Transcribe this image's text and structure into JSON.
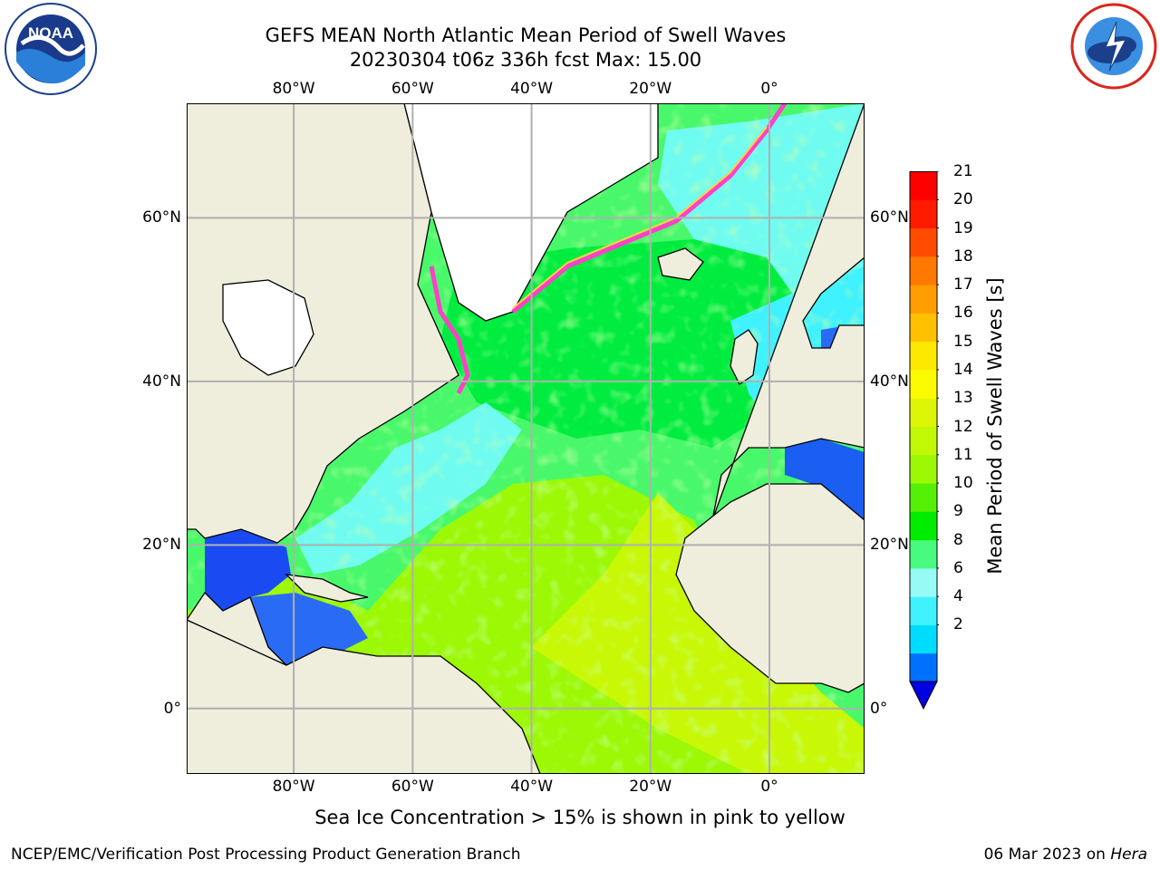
{
  "header": {
    "title_line1": "GEFS MEAN North Atlantic Mean Period of Swell Waves",
    "title_line2": "20230304 t06z 336h fcst   Max: 15.00"
  },
  "logos": {
    "noaa": {
      "text": "NOAA",
      "ring_text": "NATIONAL OCEANIC AND ATMOSPHERIC ADMINISTRATION · U.S. DEPARTMENT OF COMMERCE"
    },
    "nws": {
      "ring_text": "NATIONAL WEATHER SERVICE"
    }
  },
  "map": {
    "projection": "plate carree",
    "lon_range": [
      -98,
      16
    ],
    "lat_range": [
      -8,
      74
    ],
    "longitude_labels": [
      "80°W",
      "60°W",
      "40°W",
      "20°W",
      "0°"
    ],
    "latitude_labels": [
      "60°N",
      "40°N",
      "20°N",
      "0°"
    ],
    "grid": true,
    "land_color": "#efeddc",
    "ice_color": "#ffffff",
    "coastline_color": "#000000",
    "variable": "Mean Period of Swell Waves"
  },
  "colorbar": {
    "title": "Mean Period of Swell Waves [s]",
    "tick_labels": [
      "21",
      "20",
      "19",
      "18",
      "17",
      "16",
      "15",
      "14",
      "13",
      "12",
      "11",
      "10",
      "9",
      "8",
      "6",
      "4",
      "2"
    ],
    "extend": "min",
    "under_color": "#0000e0",
    "colors": [
      "#0071fe",
      "#00dcfe",
      "#40f1fe",
      "#96fbf5",
      "#48fa7e",
      "#00ed00",
      "#54f005",
      "#9cf805",
      "#c0f805",
      "#ddf605",
      "#fafa00",
      "#fde900",
      "#ffc000",
      "#ff9c00",
      "#ff7900",
      "#ff4c00",
      "#ff1a00",
      "#ff0000"
    ]
  },
  "annotation": "Sea Ice Concentration > 15% is shown in pink to yellow",
  "footer": {
    "left": "NCEP/EMC/Verification Post Processing Product Generation Branch",
    "right_prefix": "06 Mar 2023 on ",
    "right_host": "Hera"
  }
}
